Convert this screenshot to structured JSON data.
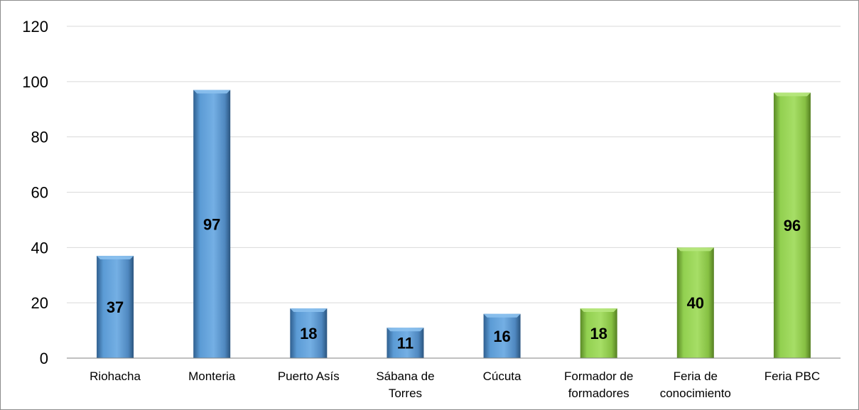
{
  "chart_data": {
    "type": "bar",
    "title": "",
    "xlabel": "",
    "ylabel": "",
    "ylim": [
      0,
      120
    ],
    "yticks": [
      0,
      20,
      40,
      60,
      80,
      100,
      120
    ],
    "grid": true,
    "legend": "none",
    "categories": [
      [
        "Riohacha"
      ],
      [
        "Monteria"
      ],
      [
        "Puerto Asís"
      ],
      [
        "Sábana de",
        "Torres"
      ],
      [
        "Cúcuta"
      ],
      [
        "Formador de",
        "formadores"
      ],
      [
        "Feria de",
        "conocimiento"
      ],
      [
        "Feria PBC"
      ]
    ],
    "values": [
      37,
      97,
      18,
      11,
      16,
      18,
      40,
      96
    ],
    "data_labels": [
      "37",
      "97",
      "18",
      "11",
      "16",
      "18",
      "40",
      "96"
    ],
    "bar_colors": [
      "#5b9bd5",
      "#5b9bd5",
      "#5b9bd5",
      "#5b9bd5",
      "#5b9bd5",
      "#92d050",
      "#92d050",
      "#92d050"
    ],
    "gridline_color": "#d9d9d9",
    "axis_color": "#808080"
  }
}
